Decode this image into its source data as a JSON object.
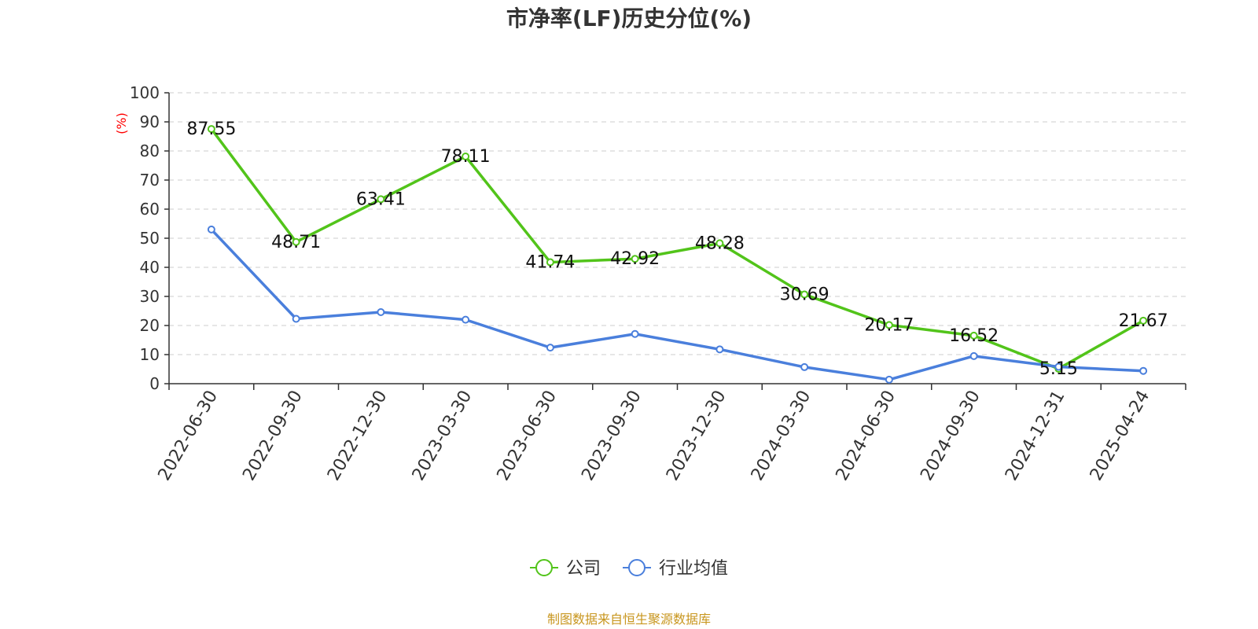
{
  "chart_data": {
    "type": "line",
    "title": "市净率(LF)历史分位(%)",
    "ylabel": "(%)",
    "ylim": [
      0,
      100
    ],
    "yticks": [
      0,
      10,
      20,
      30,
      40,
      50,
      60,
      70,
      80,
      90,
      100
    ],
    "grid": true,
    "legend_position": "bottom",
    "categories": [
      "2022-06-30",
      "2022-09-30",
      "2022-12-30",
      "2023-03-30",
      "2023-06-30",
      "2023-09-30",
      "2023-12-30",
      "2024-03-30",
      "2024-06-30",
      "2024-09-30",
      "2024-12-31",
      "2025-04-24"
    ],
    "series": [
      {
        "name": "公司",
        "color": "#52c41a",
        "values": [
          87.55,
          48.71,
          63.41,
          78.11,
          41.74,
          42.92,
          48.28,
          30.69,
          20.17,
          16.52,
          5.15,
          21.67
        ],
        "show_labels": true
      },
      {
        "name": "行业均值",
        "color": "#4a7fdc",
        "values": [
          53.0,
          22.3,
          24.6,
          22.0,
          12.4,
          17.1,
          11.8,
          5.7,
          1.4,
          9.5,
          5.8,
          4.4
        ],
        "show_labels": false
      }
    ],
    "source": "制图数据来自恒生聚源数据库"
  }
}
